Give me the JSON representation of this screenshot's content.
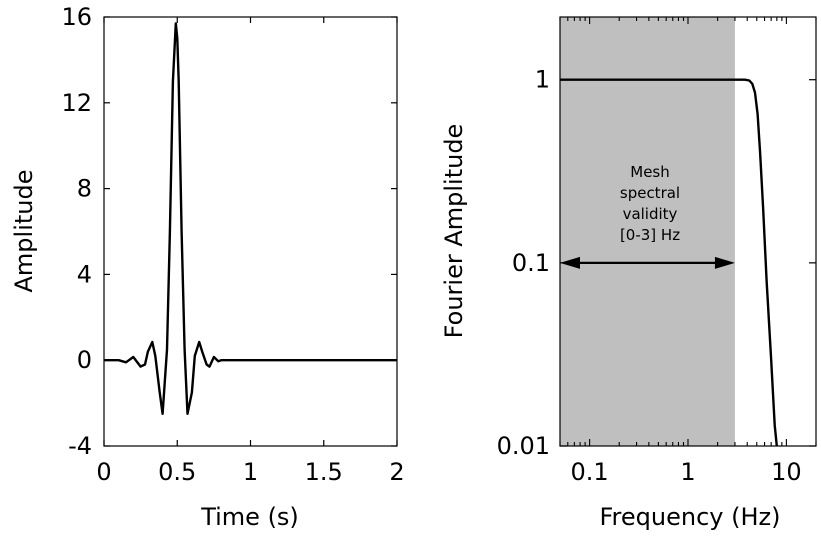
{
  "chart_data": [
    {
      "type": "line",
      "xlabel": "Time (s)",
      "ylabel": "Amplitude",
      "xlim": [
        0,
        2
      ],
      "ylim": [
        -4,
        16
      ],
      "xticks": [
        0,
        0.5,
        1,
        1.5,
        2
      ],
      "xtick_labels": [
        "0",
        "0.5",
        "1",
        "1.5",
        "2"
      ],
      "yticks": [
        -4,
        0,
        4,
        8,
        12,
        16
      ],
      "ytick_labels": [
        "-4",
        "0",
        "4",
        "8",
        "12",
        "16"
      ],
      "grid": false,
      "series": [
        {
          "color": "#000000",
          "x": [
            0,
            0.1,
            0.15,
            0.2,
            0.25,
            0.28,
            0.3,
            0.33,
            0.35,
            0.38,
            0.4,
            0.43,
            0.45,
            0.47,
            0.49,
            0.5,
            0.51,
            0.53,
            0.55,
            0.57,
            0.6,
            0.62,
            0.65,
            0.67,
            0.7,
            0.72,
            0.75,
            0.78,
            0.8,
            0.85,
            0.9,
            1.0,
            1.5,
            2.0
          ],
          "y": [
            0,
            0,
            -0.1,
            0.15,
            -0.3,
            -0.2,
            0.4,
            0.85,
            0.2,
            -1.5,
            -2.5,
            0.5,
            6.0,
            13.0,
            15.7,
            15.0,
            13.0,
            6.0,
            0.5,
            -2.5,
            -1.5,
            0.2,
            0.85,
            0.4,
            -0.2,
            -0.3,
            0.15,
            -0.05,
            0,
            0,
            0,
            0,
            0,
            0
          ]
        }
      ]
    },
    {
      "type": "line",
      "xlabel": "Frequency (Hz)",
      "ylabel": "Fourier Amplitude",
      "xscale": "log",
      "yscale": "log",
      "xlim": [
        0.05,
        20
      ],
      "ylim": [
        0.01,
        2.2
      ],
      "xticks": [
        0.1,
        1,
        10
      ],
      "xtick_labels": [
        "0.1",
        "1",
        "10"
      ],
      "yticks": [
        0.01,
        0.1,
        1
      ],
      "ytick_labels": [
        "0.01",
        "0.1",
        "1"
      ],
      "grid": false,
      "shaded_band": {
        "x": [
          0.05,
          3
        ],
        "color": "#bfbfbf"
      },
      "annotation": {
        "lines": [
          "Mesh",
          "spectral",
          "validity",
          "[0-3] Hz"
        ],
        "arrow_x": [
          0.05,
          3
        ],
        "arrow_y": 0.1
      },
      "series": [
        {
          "color": "#000000",
          "x": [
            0.05,
            0.1,
            1,
            3,
            3.8,
            4.2,
            4.5,
            4.8,
            5.1,
            5.4,
            5.8,
            6.3,
            7.0,
            7.6,
            8.0
          ],
          "y": [
            1,
            1,
            1,
            1,
            1,
            0.99,
            0.95,
            0.85,
            0.65,
            0.4,
            0.2,
            0.08,
            0.03,
            0.013,
            0.008
          ]
        }
      ]
    }
  ]
}
